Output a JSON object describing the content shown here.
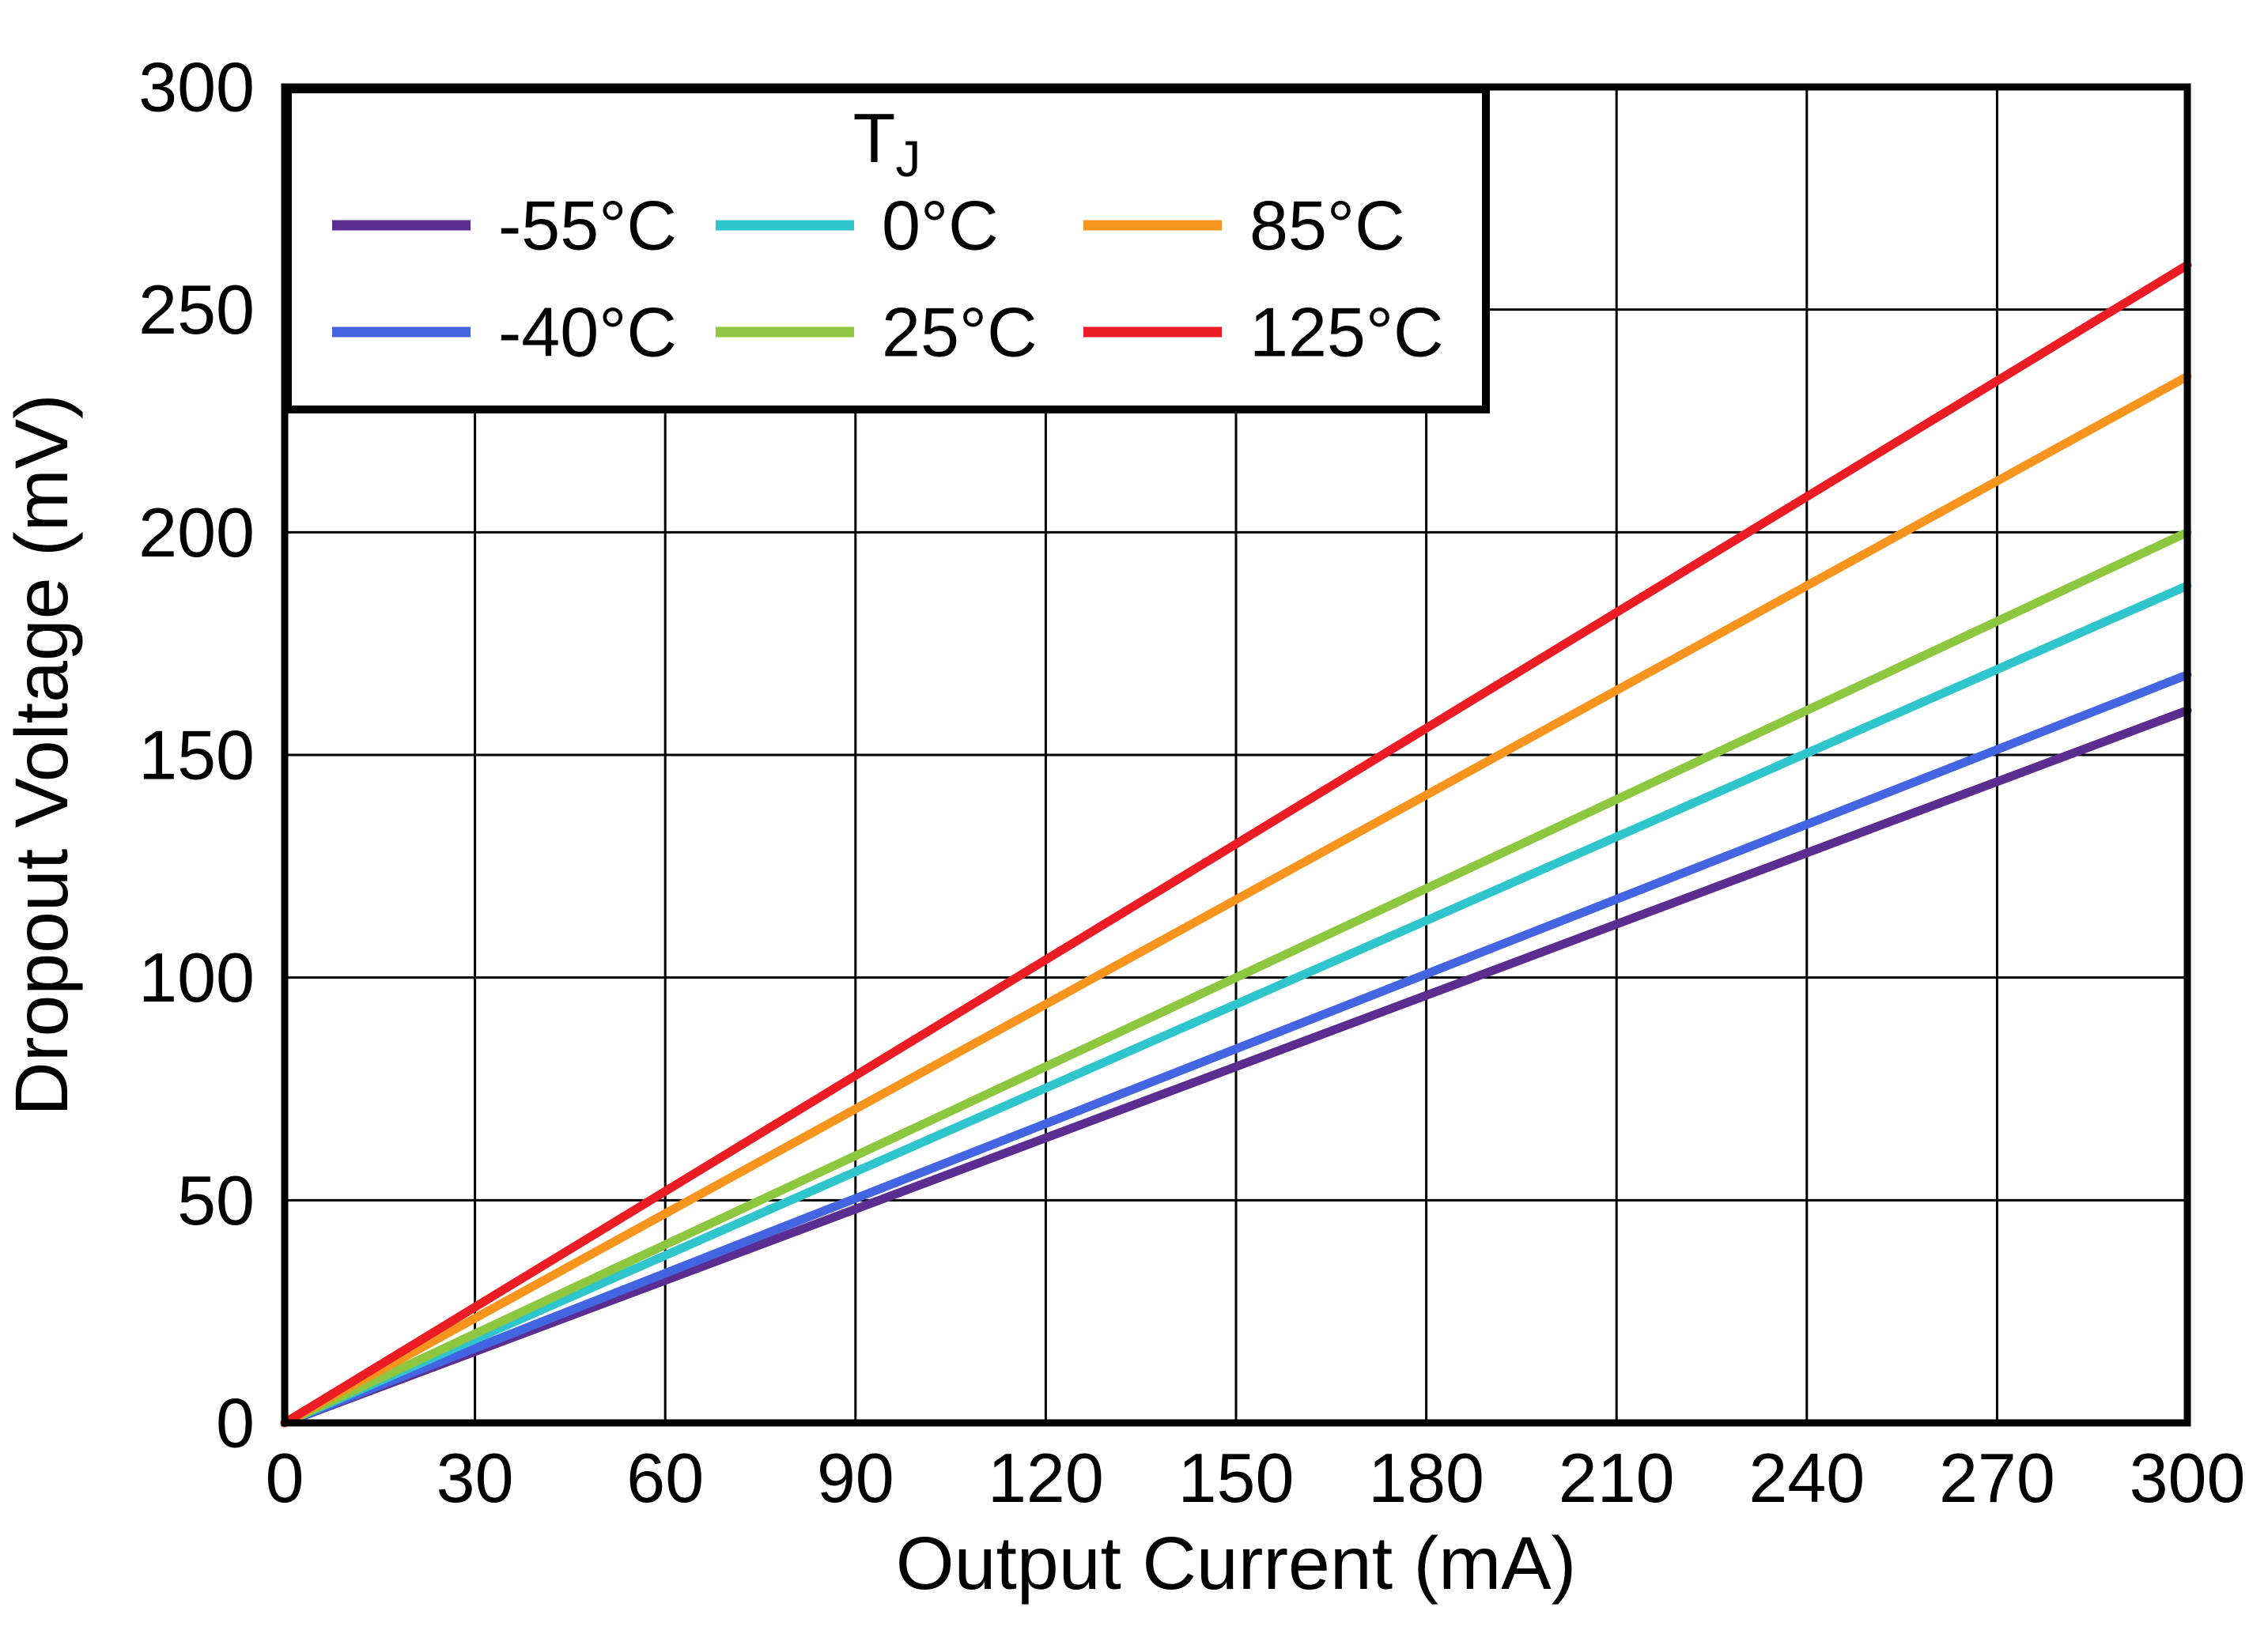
{
  "chart_data": {
    "type": "line",
    "title": "",
    "xlabel": "Output Current (mA)",
    "ylabel": "Dropout Voltage (mV)",
    "xlim": [
      0,
      300
    ],
    "ylim": [
      0,
      300
    ],
    "xticks": [
      0,
      30,
      60,
      90,
      120,
      150,
      180,
      210,
      240,
      270,
      300
    ],
    "yticks": [
      0,
      50,
      100,
      150,
      200,
      250,
      300
    ],
    "grid": true,
    "grid_color": "#000000",
    "frame_color": "#000000",
    "legend": {
      "title_main": "T",
      "title_sub": "J",
      "position": "top-left",
      "columns": [
        [
          0,
          1
        ],
        [
          2,
          3
        ],
        [
          4,
          5
        ]
      ]
    },
    "series": [
      {
        "name": "-55°C",
        "color": "#5C2D91",
        "x": [
          0,
          300
        ],
        "y": [
          0,
          160
        ]
      },
      {
        "name": "-40°C",
        "color": "#4365E2",
        "x": [
          0,
          300
        ],
        "y": [
          0,
          168
        ]
      },
      {
        "name": "0°C",
        "color": "#2FC5CC",
        "x": [
          0,
          300
        ],
        "y": [
          0,
          188
        ]
      },
      {
        "name": "25°C",
        "color": "#8DC63F",
        "x": [
          0,
          300
        ],
        "y": [
          0,
          200
        ]
      },
      {
        "name": "85°C",
        "color": "#F7941E",
        "x": [
          0,
          300
        ],
        "y": [
          0,
          235
        ]
      },
      {
        "name": "125°C",
        "color": "#EC1C24",
        "x": [
          0,
          300
        ],
        "y": [
          0,
          260
        ]
      }
    ]
  }
}
